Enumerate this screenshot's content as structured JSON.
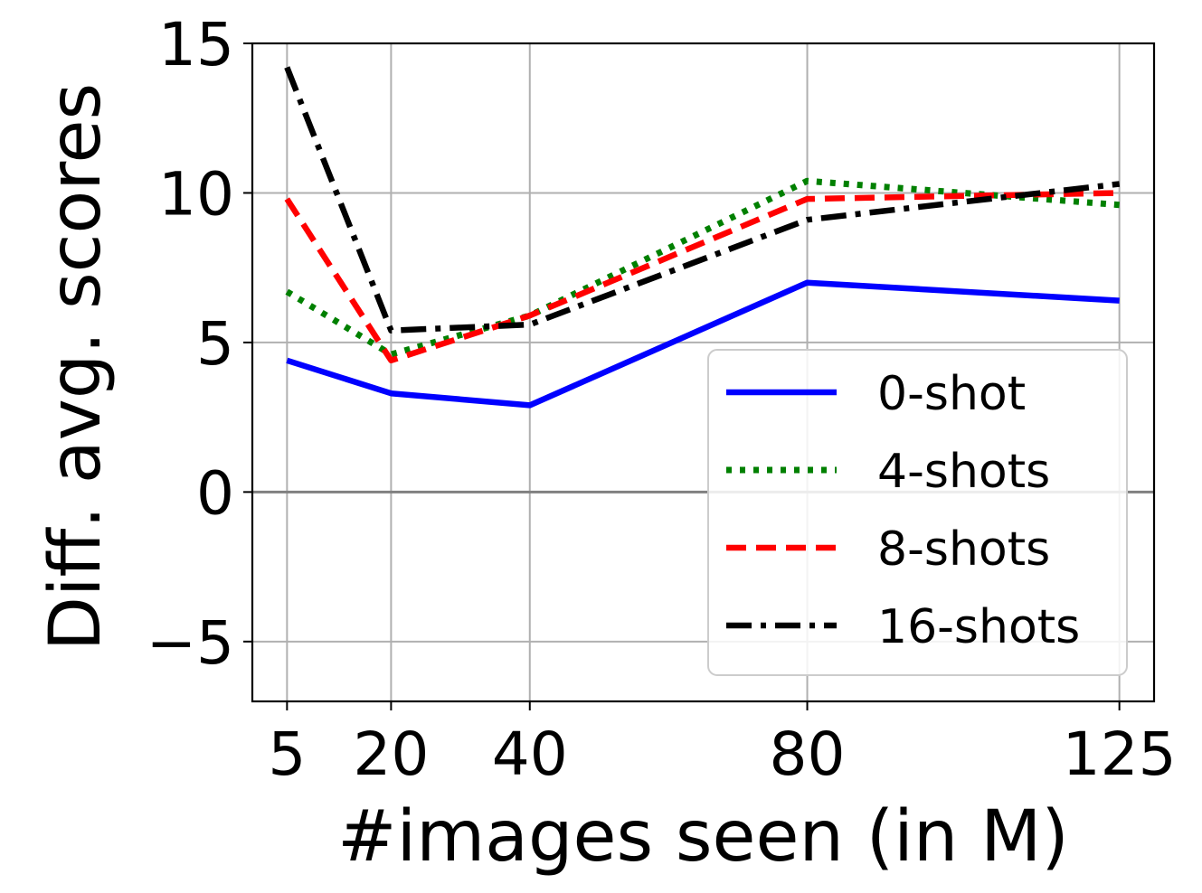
{
  "chart_data": {
    "type": "line",
    "xlabel": "#images seen (in M)",
    "ylabel": "Diff. avg. scores",
    "x": [
      5,
      20,
      40,
      80,
      125
    ],
    "xticks": [
      "5",
      "20",
      "40",
      "80",
      "125"
    ],
    "yticks": [
      "15",
      "10",
      "5",
      "0",
      "−5"
    ],
    "ytick_values": [
      15,
      10,
      5,
      0,
      -5
    ],
    "xlim": [
      0,
      130
    ],
    "ylim": [
      -7,
      15
    ],
    "grid": true,
    "zero_line": true,
    "legend_position": "lower-right",
    "series": [
      {
        "name": "0-shot",
        "values": [
          4.4,
          3.3,
          2.9,
          7.0,
          6.4
        ],
        "color": "#0000ff",
        "style": "solid"
      },
      {
        "name": "4-shots",
        "values": [
          6.7,
          4.6,
          5.9,
          10.4,
          9.6
        ],
        "color": "#008000",
        "style": "dotted"
      },
      {
        "name": "8-shots",
        "values": [
          9.8,
          4.4,
          5.9,
          9.8,
          10.0
        ],
        "color": "#ff0000",
        "style": "dashed"
      },
      {
        "name": "16-shots",
        "values": [
          14.2,
          5.4,
          5.6,
          9.1,
          10.3
        ],
        "color": "#000000",
        "style": "dashdot"
      }
    ]
  }
}
